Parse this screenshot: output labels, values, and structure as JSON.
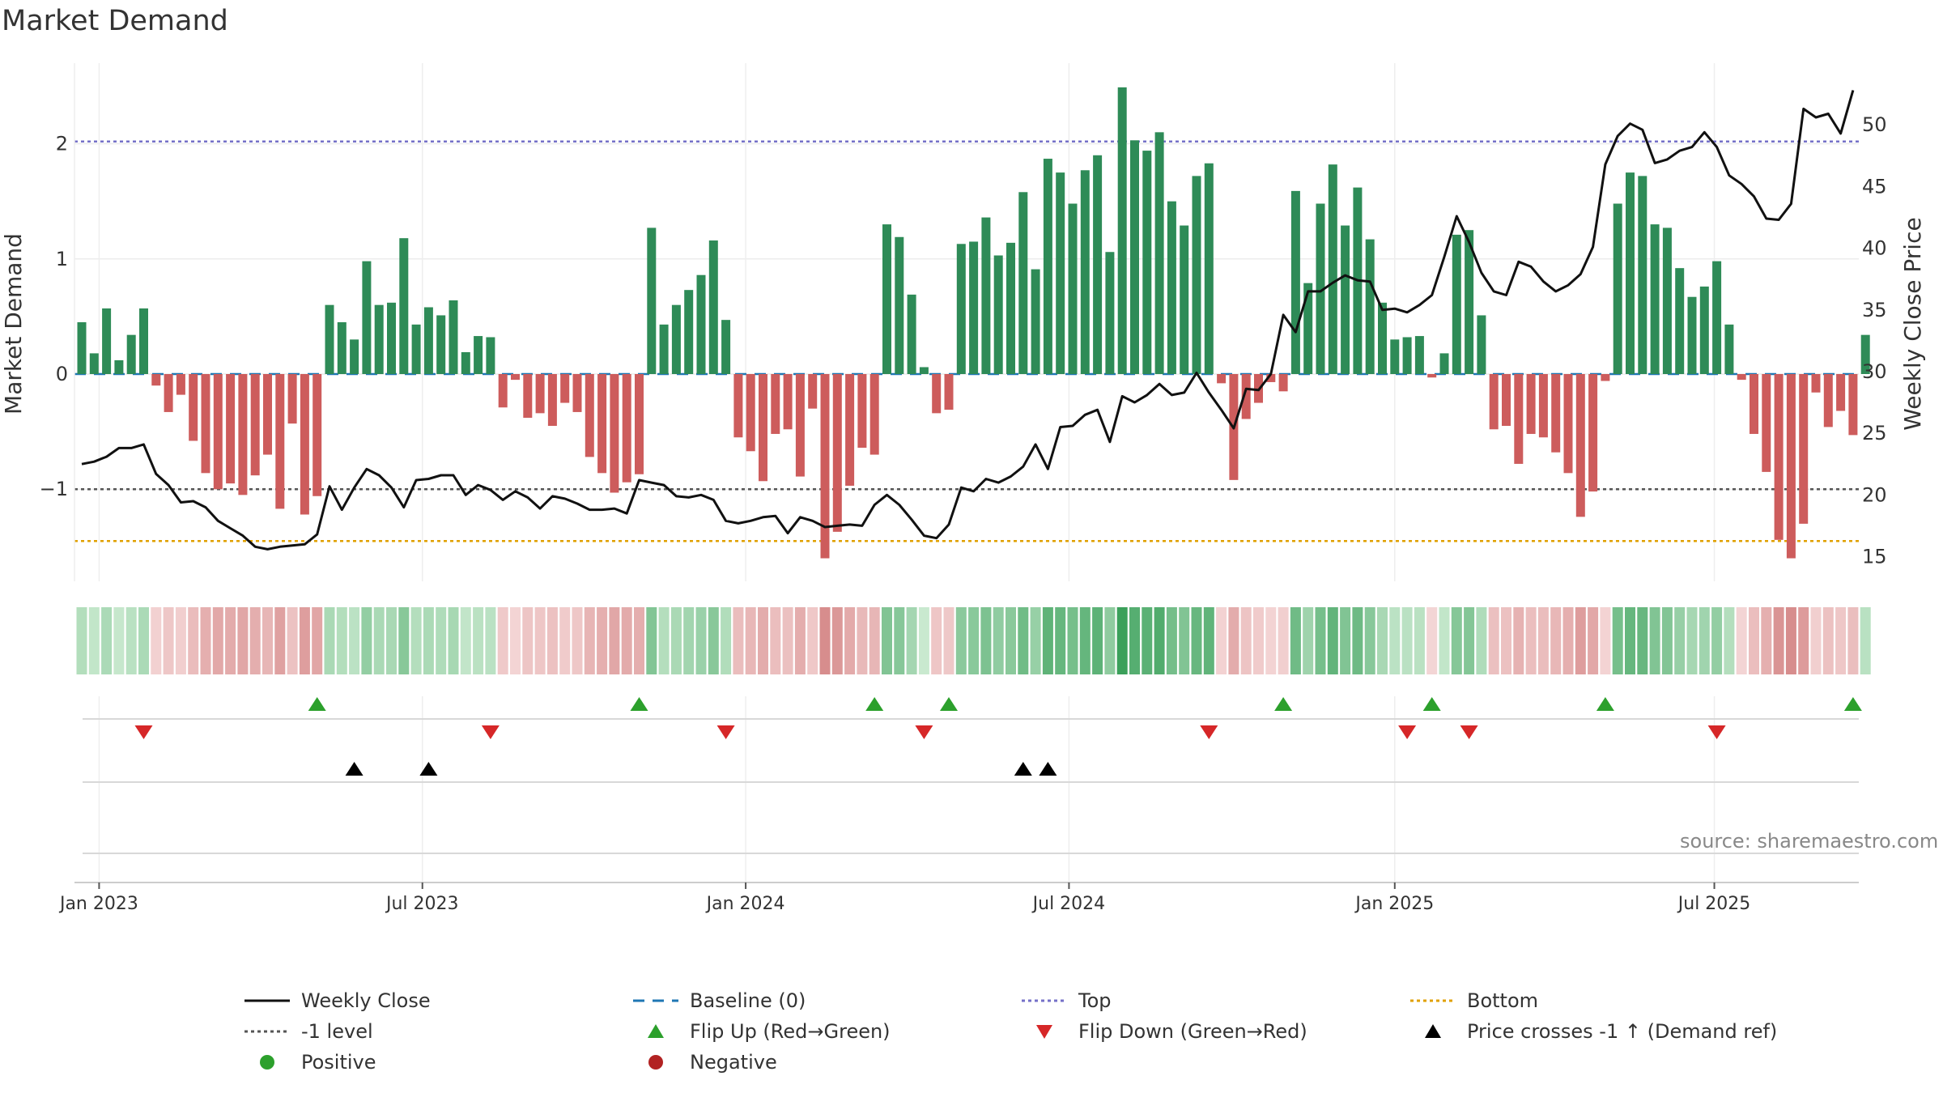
{
  "title": "Market Demand",
  "source": "source: sharemaestro.com",
  "chart_data": {
    "type": "bar",
    "ylabel_left": "Market Demand",
    "ylabel_right": "Weekly Close Price",
    "ylim_left": [
      -1.8,
      2.7
    ],
    "ylim_right": [
      13,
      55
    ],
    "yticks_left": [
      2,
      1,
      0,
      -1
    ],
    "ytick_labels_left": [
      "2",
      "1",
      "0",
      "−1"
    ],
    "yticks_right": [
      50,
      45,
      40,
      35,
      30,
      25,
      20,
      15
    ],
    "xticks": [
      {
        "label": "Jan 2023",
        "week": 1.4
      },
      {
        "label": "Jul 2023",
        "week": 27.5
      },
      {
        "label": "Jan 2024",
        "week": 53.6
      },
      {
        "label": "Jul 2024",
        "week": 79.7
      },
      {
        "label": "Jan 2025",
        "week": 106
      },
      {
        "label": "Jul 2025",
        "week": 131.8
      }
    ],
    "reference_lines": {
      "top": 2.02,
      "minus_one": -1.0,
      "bottom": -1.45,
      "baseline": 0
    },
    "demand": [
      0.45,
      0.18,
      0.57,
      0.12,
      0.34,
      0.57,
      -0.1,
      -0.33,
      -0.18,
      -0.58,
      -0.86,
      -1.0,
      -0.95,
      -1.05,
      -0.88,
      -0.7,
      -1.17,
      -0.43,
      -1.22,
      -1.06,
      0.6,
      0.45,
      0.3,
      0.98,
      0.6,
      0.62,
      1.18,
      0.43,
      0.58,
      0.51,
      0.64,
      0.19,
      0.33,
      0.32,
      -0.29,
      -0.05,
      -0.38,
      -0.34,
      -0.45,
      -0.25,
      -0.33,
      -0.72,
      -0.86,
      -1.03,
      -0.94,
      -0.87,
      1.27,
      0.43,
      0.6,
      0.73,
      0.86,
      1.16,
      0.47,
      -0.55,
      -0.67,
      -0.93,
      -0.52,
      -0.48,
      -0.89,
      -0.3,
      -1.6,
      -1.37,
      -0.97,
      -0.64,
      -0.7,
      1.3,
      1.19,
      0.69,
      0.06,
      -0.34,
      -0.31,
      1.13,
      1.15,
      1.36,
      1.03,
      1.14,
      1.58,
      0.91,
      1.87,
      1.75,
      1.48,
      1.77,
      1.9,
      1.06,
      2.49,
      2.03,
      1.94,
      2.1,
      1.5,
      1.29,
      1.72,
      1.83,
      -0.08,
      -0.92,
      -0.39,
      -0.25,
      -0.07,
      -0.15,
      1.59,
      0.79,
      1.48,
      1.82,
      1.29,
      1.62,
      1.17,
      0.62,
      0.3,
      0.32,
      0.33,
      -0.03,
      0.18,
      1.21,
      1.25,
      0.51,
      -0.48,
      -0.45,
      -0.78,
      -0.52,
      -0.55,
      -0.68,
      -0.86,
      -1.24,
      -1.02,
      -0.06,
      1.48,
      1.75,
      1.72,
      1.3,
      1.27,
      0.92,
      0.67,
      0.76,
      0.98,
      0.43,
      -0.05,
      -0.52,
      -0.85,
      -1.44,
      -1.6,
      -1.3,
      -0.16,
      -0.46,
      -0.32,
      -0.53,
      0.34
    ],
    "weekly_close": [
      22.5,
      22.7,
      23.1,
      23.8,
      23.8,
      24.1,
      21.7,
      20.8,
      19.4,
      19.5,
      19.0,
      17.9,
      17.3,
      16.7,
      15.8,
      15.6,
      15.8,
      15.9,
      16.0,
      16.8,
      20.7,
      18.8,
      20.6,
      22.1,
      21.6,
      20.6,
      19.0,
      21.2,
      21.3,
      21.6,
      21.6,
      20.0,
      20.8,
      20.4,
      19.6,
      20.3,
      19.8,
      18.9,
      19.9,
      19.7,
      19.3,
      18.8,
      18.8,
      18.9,
      18.5,
      21.2,
      21.0,
      20.8,
      19.9,
      19.8,
      20.0,
      19.6,
      17.9,
      17.7,
      17.9,
      18.2,
      18.3,
      16.9,
      18.2,
      17.9,
      17.4,
      17.5,
      17.6,
      17.5,
      19.2,
      20.0,
      19.2,
      18.0,
      16.7,
      16.5,
      17.6,
      20.6,
      20.3,
      21.3,
      21.0,
      21.5,
      22.3,
      24.1,
      22.1,
      25.5,
      25.6,
      26.5,
      26.9,
      24.3,
      28.0,
      27.5,
      28.1,
      29.0,
      28.1,
      28.3,
      29.9,
      28.3,
      26.9,
      25.4,
      28.6,
      28.5,
      29.8,
      34.6,
      33.2,
      36.5,
      36.5,
      37.2,
      37.8,
      37.4,
      37.3,
      35.0,
      35.1,
      34.8,
      35.4,
      36.2,
      39.3,
      42.6,
      40.5,
      38.0,
      36.5,
      36.2,
      38.9,
      38.5,
      37.3,
      36.5,
      37.0,
      37.9,
      40.1,
      46.8,
      49.1,
      50.1,
      49.6,
      46.9,
      47.2,
      47.9,
      48.2,
      49.4,
      48.2,
      45.9,
      45.2,
      44.2,
      42.4,
      42.3,
      43.6,
      51.3,
      50.6,
      50.9,
      49.3,
      52.8
    ],
    "heat_strip": "weekly demand colour band (green = positive, red = negative)",
    "flip_up_weeks": [
      19,
      45,
      64,
      70,
      97,
      109,
      123,
      143
    ],
    "flip_down_weeks": [
      5,
      33,
      52,
      68,
      91,
      107,
      112,
      132
    ],
    "price_cross_weeks": [
      22,
      28,
      76,
      78
    ]
  },
  "legend": [
    {
      "label": "Weekly Close",
      "kind": "solid-line",
      "color": "#111111"
    },
    {
      "label": "Baseline (0)",
      "kind": "dashed-line",
      "color": "#1f77b4"
    },
    {
      "label": "Top",
      "kind": "dotted-line",
      "color": "#7570c8"
    },
    {
      "label": "Bottom",
      "kind": "dotted-line",
      "color": "#e0a000"
    },
    {
      "label": "-1 level",
      "kind": "dotted-line",
      "color": "#555555"
    },
    {
      "label": "Flip Up (Red→Green)",
      "kind": "triangle-up",
      "color": "#2ca02c"
    },
    {
      "label": "Flip Down (Green→Red)",
      "kind": "triangle-down",
      "color": "#d62728"
    },
    {
      "label": "Price crosses -1 ↑ (Demand ref)",
      "kind": "triangle-up",
      "color": "#000000"
    },
    {
      "label": "Positive",
      "kind": "dot",
      "color": "#2ca02c"
    },
    {
      "label": "Negative",
      "kind": "dot",
      "color": "#b22222"
    }
  ],
  "colors": {
    "positive_bar": "#2e8b57",
    "negative_bar": "#cd5c5c",
    "price_line": "#111111",
    "baseline": "#1f77b4",
    "top_line": "#7570c8",
    "bottom_line": "#e0a000",
    "minus_one_line": "#555555",
    "flip_up": "#2ca02c",
    "flip_down": "#d62728",
    "price_cross": "#000000"
  }
}
